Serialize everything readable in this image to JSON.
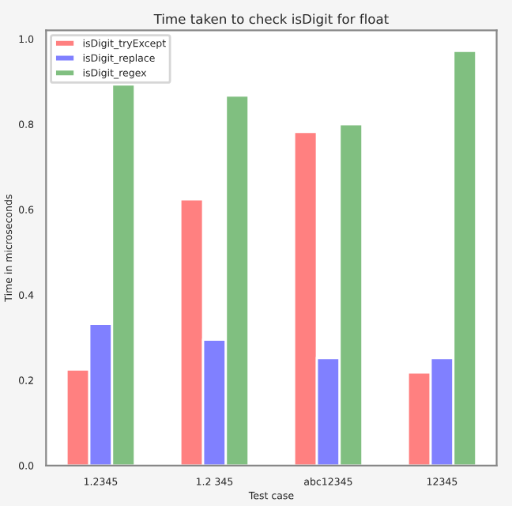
{
  "chart_data": {
    "type": "bar",
    "title": "Time taken to check isDigit for float",
    "xlabel": "Test case",
    "ylabel": "Time in microseconds",
    "categories": [
      "1.2345",
      "1.2 345",
      "abc12345",
      "12345"
    ],
    "series": [
      {
        "name": "isDigit_tryExcept",
        "color": "#ff8080",
        "values": [
          0.225,
          0.624,
          0.782,
          0.218
        ]
      },
      {
        "name": "isDigit_replace",
        "color": "#8080ff",
        "values": [
          0.332,
          0.295,
          0.252,
          0.252
        ]
      },
      {
        "name": "isDigit_regex",
        "color": "#80bf80",
        "values": [
          0.893,
          0.867,
          0.8,
          0.972
        ]
      }
    ],
    "ylim": [
      0,
      1.02
    ],
    "yticks": [
      {
        "value": 0,
        "label": "0.0"
      },
      {
        "value": 0.2,
        "label": "0.2"
      },
      {
        "value": 0.4,
        "label": "0.4"
      },
      {
        "value": 0.6,
        "label": "0.6"
      },
      {
        "value": 0.8,
        "label": "0.8"
      },
      {
        "value": 1.0,
        "label": "1.0"
      }
    ],
    "grid": false,
    "legend": "top left"
  }
}
